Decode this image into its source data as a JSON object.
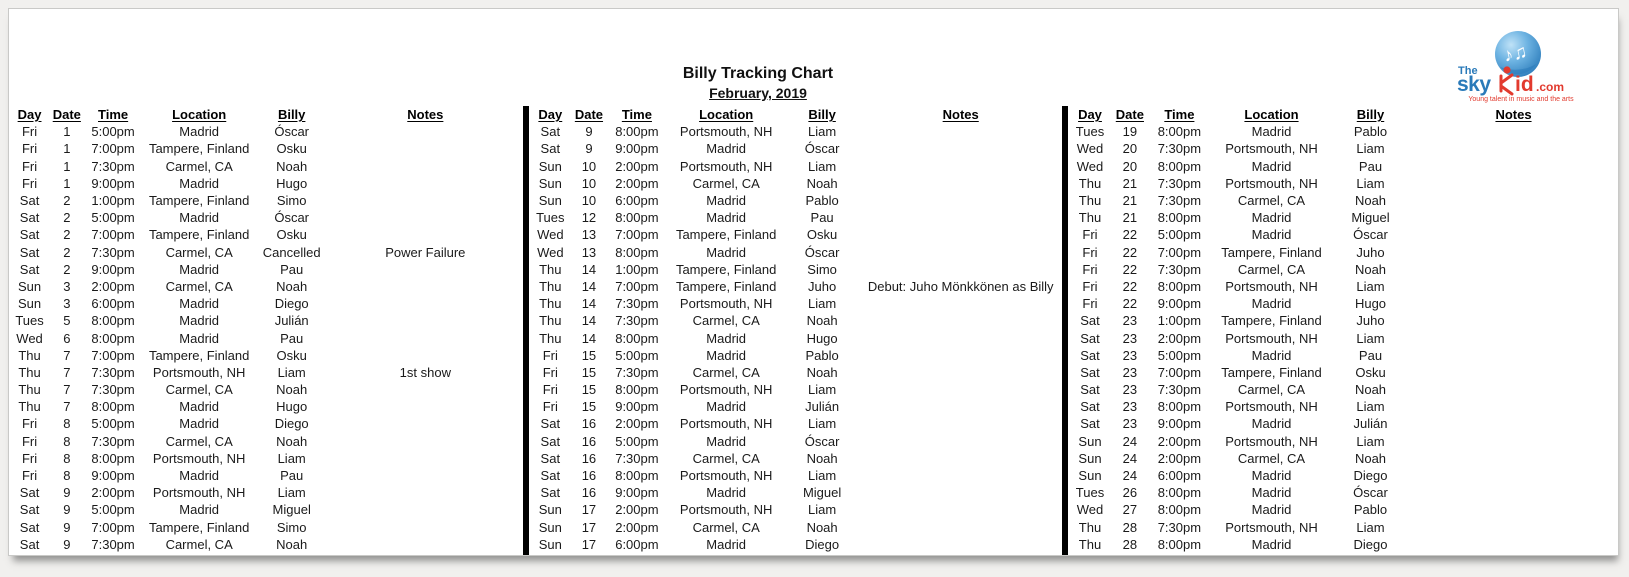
{
  "page": {
    "title": "Billy Tracking Chart",
    "subtitle": "February, 2019"
  },
  "logo": {
    "the": "The",
    "sky": "sky",
    "kid_id": "id",
    "com": ".com",
    "tagline": "Young talent in music and the arts",
    "colors": {
      "blue": "#2a7ab9",
      "light_blue": "#6db3e2",
      "red": "#e23a2e"
    }
  },
  "icons": {
    "music_notes": "♪♫"
  },
  "columns": [
    "Day",
    "Date",
    "Time",
    "Location",
    "Billy",
    "Notes"
  ],
  "sections": [
    {
      "rows": [
        [
          "Fri",
          "1",
          "5:00pm",
          "Madrid",
          "Óscar",
          ""
        ],
        [
          "Fri",
          "1",
          "7:00pm",
          "Tampere, Finland",
          "Osku",
          ""
        ],
        [
          "Fri",
          "1",
          "7:30pm",
          "Carmel, CA",
          "Noah",
          ""
        ],
        [
          "Fri",
          "1",
          "9:00pm",
          "Madrid",
          "Hugo",
          ""
        ],
        [
          "Sat",
          "2",
          "1:00pm",
          "Tampere, Finland",
          "Simo",
          ""
        ],
        [
          "Sat",
          "2",
          "5:00pm",
          "Madrid",
          "Óscar",
          ""
        ],
        [
          "Sat",
          "2",
          "7:00pm",
          "Tampere, Finland",
          "Osku",
          ""
        ],
        [
          "Sat",
          "2",
          "7:30pm",
          "Carmel, CA",
          "Cancelled",
          "Power Failure"
        ],
        [
          "Sat",
          "2",
          "9:00pm",
          "Madrid",
          "Pau",
          ""
        ],
        [
          "Sun",
          "3",
          "2:00pm",
          "Carmel, CA",
          "Noah",
          ""
        ],
        [
          "Sun",
          "3",
          "6:00pm",
          "Madrid",
          "Diego",
          ""
        ],
        [
          "Tues",
          "5",
          "8:00pm",
          "Madrid",
          "Julián",
          ""
        ],
        [
          "Wed",
          "6",
          "8:00pm",
          "Madrid",
          "Pau",
          ""
        ],
        [
          "Thu",
          "7",
          "7:00pm",
          "Tampere, Finland",
          "Osku",
          ""
        ],
        [
          "Thu",
          "7",
          "7:30pm",
          "Portsmouth, NH",
          "Liam",
          "1st show"
        ],
        [
          "Thu",
          "7",
          "7:30pm",
          "Carmel, CA",
          "Noah",
          ""
        ],
        [
          "Thu",
          "7",
          "8:00pm",
          "Madrid",
          "Hugo",
          ""
        ],
        [
          "Fri",
          "8",
          "5:00pm",
          "Madrid",
          "Diego",
          ""
        ],
        [
          "Fri",
          "8",
          "7:30pm",
          "Carmel, CA",
          "Noah",
          ""
        ],
        [
          "Fri",
          "8",
          "8:00pm",
          "Portsmouth, NH",
          "Liam",
          ""
        ],
        [
          "Fri",
          "8",
          "9:00pm",
          "Madrid",
          "Pau",
          ""
        ],
        [
          "Sat",
          "9",
          "2:00pm",
          "Portsmouth, NH",
          "Liam",
          ""
        ],
        [
          "Sat",
          "9",
          "5:00pm",
          "Madrid",
          "Miguel",
          ""
        ],
        [
          "Sat",
          "9",
          "7:00pm",
          "Tampere, Finland",
          "Simo",
          ""
        ],
        [
          "Sat",
          "9",
          "7:30pm",
          "Carmel, CA",
          "Noah",
          ""
        ]
      ]
    },
    {
      "rows": [
        [
          "Sat",
          "9",
          "8:00pm",
          "Portsmouth, NH",
          "Liam",
          ""
        ],
        [
          "Sat",
          "9",
          "9:00pm",
          "Madrid",
          "Óscar",
          ""
        ],
        [
          "Sun",
          "10",
          "2:00pm",
          "Portsmouth, NH",
          "Liam",
          ""
        ],
        [
          "Sun",
          "10",
          "2:00pm",
          "Carmel, CA",
          "Noah",
          ""
        ],
        [
          "Sun",
          "10",
          "6:00pm",
          "Madrid",
          "Pablo",
          ""
        ],
        [
          "Tues",
          "12",
          "8:00pm",
          "Madrid",
          "Pau",
          ""
        ],
        [
          "Wed",
          "13",
          "7:00pm",
          "Tampere, Finland",
          "Osku",
          ""
        ],
        [
          "Wed",
          "13",
          "8:00pm",
          "Madrid",
          "Óscar",
          ""
        ],
        [
          "Thu",
          "14",
          "1:00pm",
          "Tampere, Finland",
          "Simo",
          ""
        ],
        [
          "Thu",
          "14",
          "7:00pm",
          "Tampere, Finland",
          "Juho",
          "Debut: Juho Mönkkönen as Billy"
        ],
        [
          "Thu",
          "14",
          "7:30pm",
          "Portsmouth, NH",
          "Liam",
          ""
        ],
        [
          "Thu",
          "14",
          "7:30pm",
          "Carmel, CA",
          "Noah",
          ""
        ],
        [
          "Thu",
          "14",
          "8:00pm",
          "Madrid",
          "Hugo",
          ""
        ],
        [
          "Fri",
          "15",
          "5:00pm",
          "Madrid",
          "Pablo",
          ""
        ],
        [
          "Fri",
          "15",
          "7:30pm",
          "Carmel, CA",
          "Noah",
          ""
        ],
        [
          "Fri",
          "15",
          "8:00pm",
          "Portsmouth, NH",
          "Liam",
          ""
        ],
        [
          "Fri",
          "15",
          "9:00pm",
          "Madrid",
          "Julián",
          ""
        ],
        [
          "Sat",
          "16",
          "2:00pm",
          "Portsmouth, NH",
          "Liam",
          ""
        ],
        [
          "Sat",
          "16",
          "5:00pm",
          "Madrid",
          "Óscar",
          ""
        ],
        [
          "Sat",
          "16",
          "7:30pm",
          "Carmel, CA",
          "Noah",
          ""
        ],
        [
          "Sat",
          "16",
          "8:00pm",
          "Portsmouth, NH",
          "Liam",
          ""
        ],
        [
          "Sat",
          "16",
          "9:00pm",
          "Madrid",
          "Miguel",
          ""
        ],
        [
          "Sun",
          "17",
          "2:00pm",
          "Portsmouth, NH",
          "Liam",
          ""
        ],
        [
          "Sun",
          "17",
          "2:00pm",
          "Carmel, CA",
          "Noah",
          ""
        ],
        [
          "Sun",
          "17",
          "6:00pm",
          "Madrid",
          "Diego",
          ""
        ]
      ]
    },
    {
      "rows": [
        [
          "Tues",
          "19",
          "8:00pm",
          "Madrid",
          "Pablo",
          ""
        ],
        [
          "Wed",
          "20",
          "7:30pm",
          "Portsmouth, NH",
          "Liam",
          ""
        ],
        [
          "Wed",
          "20",
          "8:00pm",
          "Madrid",
          "Pau",
          ""
        ],
        [
          "Thu",
          "21",
          "7:30pm",
          "Portsmouth, NH",
          "Liam",
          ""
        ],
        [
          "Thu",
          "21",
          "7:30pm",
          "Carmel, CA",
          "Noah",
          ""
        ],
        [
          "Thu",
          "21",
          "8:00pm",
          "Madrid",
          "Miguel",
          ""
        ],
        [
          "Fri",
          "22",
          "5:00pm",
          "Madrid",
          "Óscar",
          ""
        ],
        [
          "Fri",
          "22",
          "7:00pm",
          "Tampere, Finland",
          "Juho",
          ""
        ],
        [
          "Fri",
          "22",
          "7:30pm",
          "Carmel, CA",
          "Noah",
          ""
        ],
        [
          "Fri",
          "22",
          "8:00pm",
          "Portsmouth, NH",
          "Liam",
          ""
        ],
        [
          "Fri",
          "22",
          "9:00pm",
          "Madrid",
          "Hugo",
          ""
        ],
        [
          "Sat",
          "23",
          "1:00pm",
          "Tampere, Finland",
          "Juho",
          ""
        ],
        [
          "Sat",
          "23",
          "2:00pm",
          "Portsmouth, NH",
          "Liam",
          ""
        ],
        [
          "Sat",
          "23",
          "5:00pm",
          "Madrid",
          "Pau",
          ""
        ],
        [
          "Sat",
          "23",
          "7:00pm",
          "Tampere, Finland",
          "Osku",
          ""
        ],
        [
          "Sat",
          "23",
          "7:30pm",
          "Carmel, CA",
          "Noah",
          ""
        ],
        [
          "Sat",
          "23",
          "8:00pm",
          "Portsmouth, NH",
          "Liam",
          ""
        ],
        [
          "Sat",
          "23",
          "9:00pm",
          "Madrid",
          "Julián",
          ""
        ],
        [
          "Sun",
          "24",
          "2:00pm",
          "Portsmouth, NH",
          "Liam",
          ""
        ],
        [
          "Sun",
          "24",
          "2:00pm",
          "Carmel, CA",
          "Noah",
          ""
        ],
        [
          "Sun",
          "24",
          "6:00pm",
          "Madrid",
          "Diego",
          ""
        ],
        [
          "Tues",
          "26",
          "8:00pm",
          "Madrid",
          "Óscar",
          ""
        ],
        [
          "Wed",
          "27",
          "8:00pm",
          "Madrid",
          "Pablo",
          ""
        ],
        [
          "Thu",
          "28",
          "7:30pm",
          "Portsmouth, NH",
          "Liam",
          ""
        ],
        [
          "Thu",
          "28",
          "8:00pm",
          "Madrid",
          "Diego",
          ""
        ]
      ]
    }
  ]
}
